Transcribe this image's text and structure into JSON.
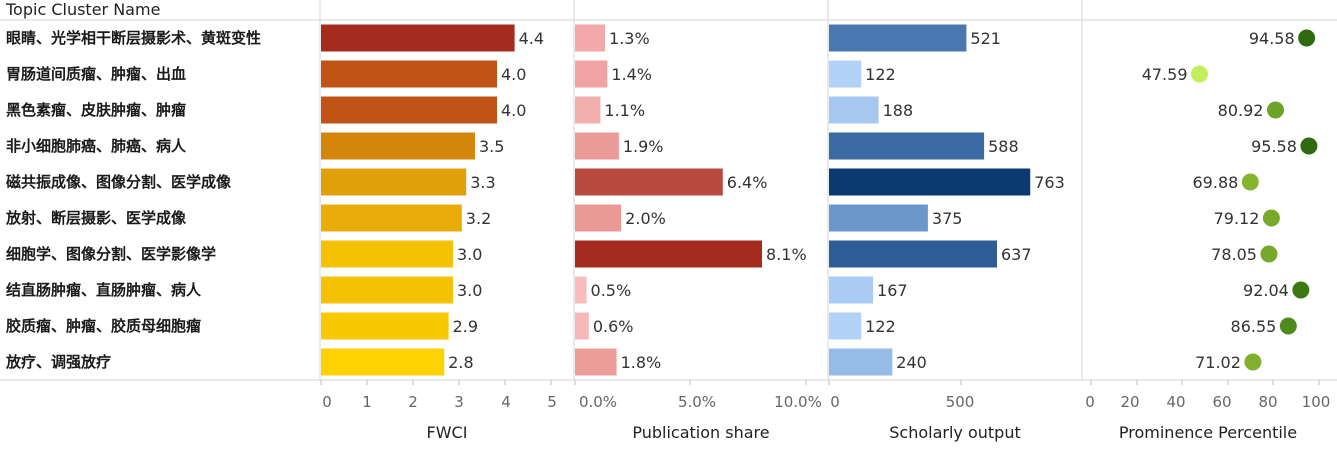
{
  "header": {
    "row_label": "Topic Cluster Name"
  },
  "chart_data": [
    {
      "type": "bar",
      "orientation": "horizontal",
      "categories": [
        "眼睛、光学相干断层摄影术、黄斑变性",
        "胃肠道间质瘤、肿瘤、出血",
        "黑色素瘤、皮肤肿瘤、肿瘤",
        "非小细胞肺癌、肺癌、病人",
        "磁共振成像、图像分割、医学成像",
        "放射、断层摄影、医学成像",
        "细胞学、图像分割、医学影像学",
        "结直肠肿瘤、直肠肿瘤、病人",
        "胶质瘤、肿瘤、胶质母细胞瘤",
        "放疗、调强放疗"
      ],
      "xlabel": "FWCI",
      "xlim": [
        0,
        5
      ],
      "ticks": [
        "0",
        "1",
        "2",
        "3",
        "4",
        "5"
      ],
      "values": [
        4.4,
        4.0,
        4.0,
        3.5,
        3.3,
        3.2,
        3.0,
        3.0,
        2.9,
        2.8
      ],
      "value_labels": [
        "4.4",
        "4.0",
        "4.0",
        "3.5",
        "3.3",
        "3.2",
        "3.0",
        "3.0",
        "2.9",
        "2.8"
      ],
      "colors": [
        "#a52b1f",
        "#c05417",
        "#c05417",
        "#d4860a",
        "#e0a00b",
        "#e8ad0a",
        "#f4c203",
        "#f4c203",
        "#f8c900",
        "#fdd200"
      ]
    },
    {
      "type": "bar",
      "orientation": "horizontal",
      "xlabel": "Publication share",
      "xlim": [
        0,
        10
      ],
      "ticks": [
        "0.0%",
        "5.0%",
        "10.0%"
      ],
      "values": [
        1.3,
        1.4,
        1.1,
        1.9,
        6.4,
        2.0,
        8.1,
        0.5,
        0.6,
        1.8
      ],
      "value_labels": [
        "1.3%",
        "1.4%",
        "1.1%",
        "1.9%",
        "6.4%",
        "2.0%",
        "8.1%",
        "0.5%",
        "0.6%",
        "1.8%"
      ],
      "colors": [
        "#f3a9a9",
        "#f1a3a3",
        "#f3aeae",
        "#ec9b98",
        "#b94a3f",
        "#ea9996",
        "#a52b1f",
        "#f7bcbc",
        "#f7b8b8",
        "#ec9d9a"
      ]
    },
    {
      "type": "bar",
      "orientation": "horizontal",
      "xlabel": "Scholarly output",
      "xlim": [
        0,
        950
      ],
      "ticks": [
        "0",
        "500"
      ],
      "values": [
        521,
        122,
        188,
        588,
        763,
        375,
        637,
        167,
        122,
        240
      ],
      "value_labels": [
        "521",
        "122",
        "188",
        "588",
        "763",
        "375",
        "637",
        "167",
        "122",
        "240"
      ],
      "colors": [
        "#4a78b0",
        "#b2d3f7",
        "#a6c8f0",
        "#3b6aa3",
        "#0a3a70",
        "#6c97cc",
        "#2d5c96",
        "#aacbf3",
        "#b2d3f7",
        "#96bbe7"
      ]
    },
    {
      "type": "scatter",
      "xlabel": "Prominence Percentile",
      "xlim": [
        0,
        105
      ],
      "ticks": [
        "0",
        "20",
        "40",
        "60",
        "80",
        "100"
      ],
      "values": [
        94.58,
        47.59,
        80.92,
        95.58,
        69.88,
        79.12,
        78.05,
        92.04,
        86.55,
        71.02
      ],
      "value_labels": [
        "94.58",
        "47.59",
        "80.92",
        "95.58",
        "69.88",
        "79.12",
        "78.05",
        "92.04",
        "86.55",
        "71.02"
      ],
      "colors": [
        "#2f6a10",
        "#c3ef5e",
        "#6ea32a",
        "#2f6a10",
        "#85b52e",
        "#78a92b",
        "#77a82b",
        "#3e7814",
        "#4f8a1c",
        "#80b02d"
      ]
    }
  ]
}
